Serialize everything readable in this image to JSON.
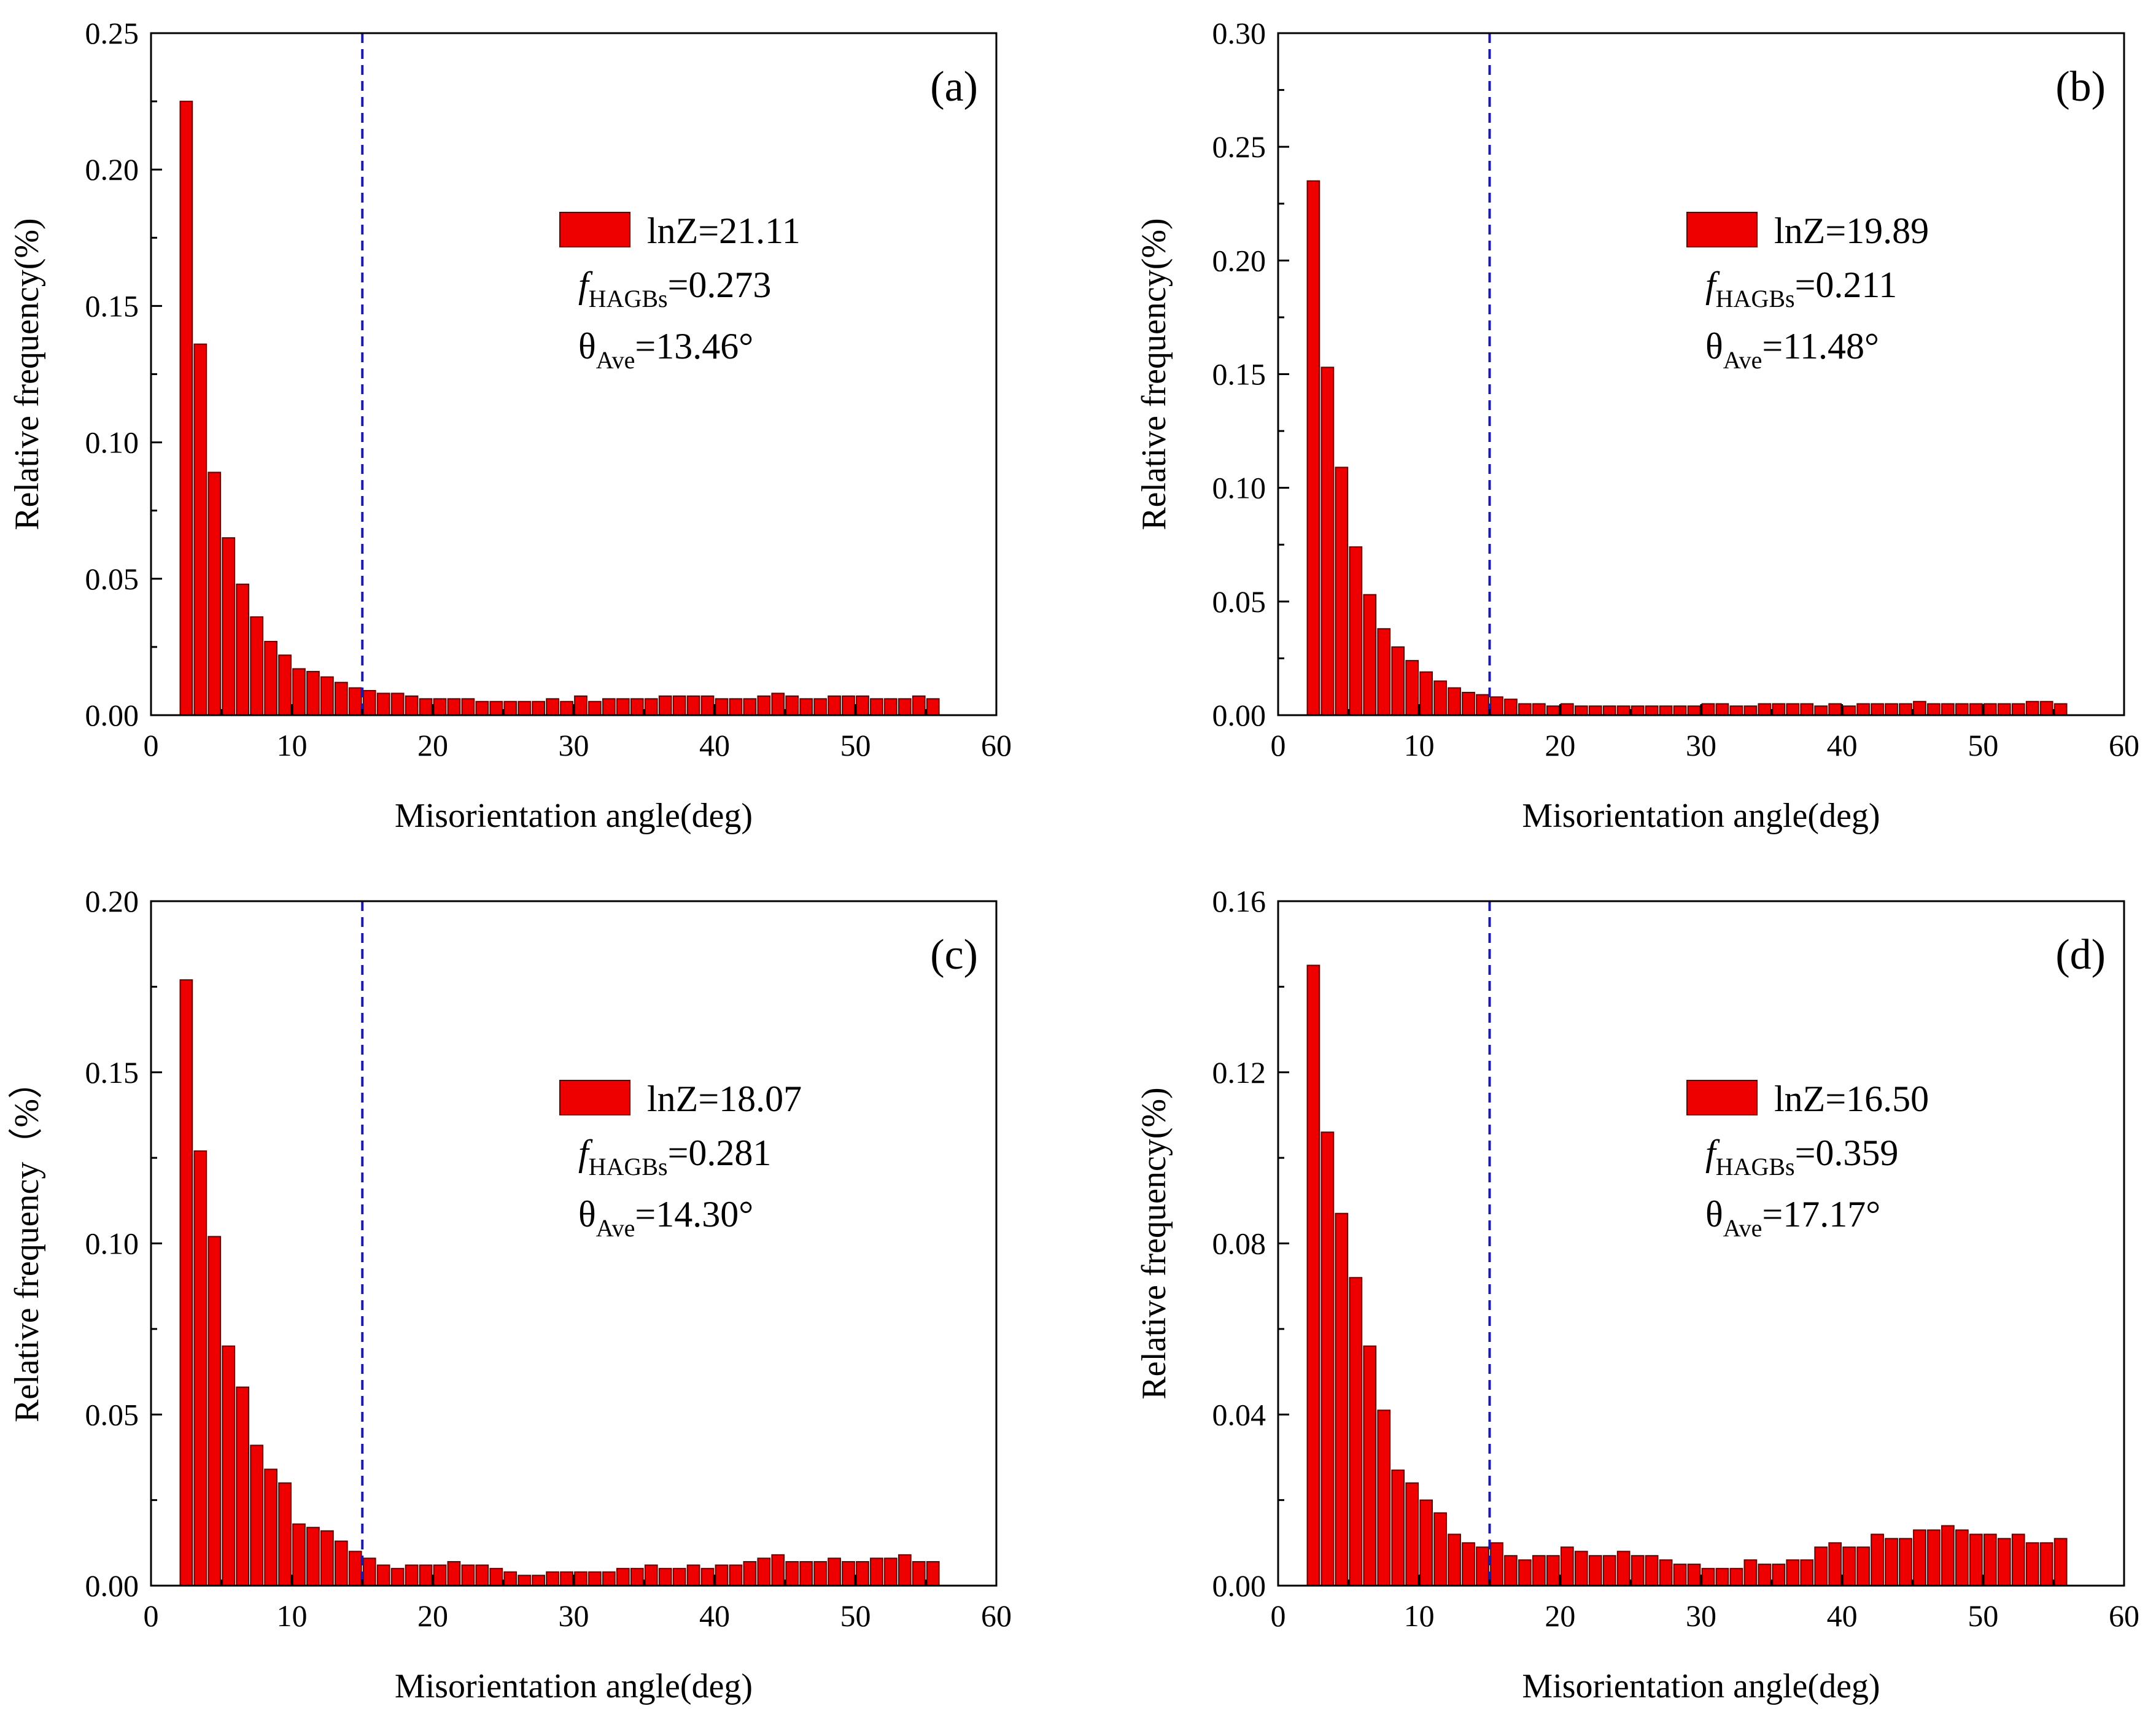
{
  "figure": {
    "bar_color": "#ee0000",
    "bar_edge_color": "#6b0000",
    "dashed_line_color": "#1a1ab0"
  },
  "chart_data": [
    {
      "type": "bar",
      "panel_label": "(a)",
      "xlabel": "Misorientation angle(deg)",
      "ylabel": "Relative frequency(%)",
      "xlim": [
        0,
        60
      ],
      "ylim": [
        0,
        0.25
      ],
      "xticks": [
        "0",
        "10",
        "20",
        "30",
        "40",
        "50",
        "60"
      ],
      "yticks": [
        "0.00",
        "0.05",
        "0.10",
        "0.15",
        "0.20",
        "0.25"
      ],
      "threshold_angle": 15,
      "legend": {
        "series_label": "lnZ=21.11",
        "f_symbol": "f",
        "f_subscript": "HAGBs",
        "f_value": "=0.273",
        "theta_symbol": "θ",
        "theta_subscript": "Ave",
        "theta_value": "=13.46°"
      },
      "x": [
        2.5,
        3.5,
        4.5,
        5.5,
        6.5,
        7.5,
        8.5,
        9.5,
        10.5,
        11.5,
        12.5,
        13.5,
        14.5,
        15.5,
        16.5,
        17.5,
        18.5,
        19.5,
        20.5,
        21.5,
        22.5,
        23.5,
        24.5,
        25.5,
        26.5,
        27.5,
        28.5,
        29.5,
        30.5,
        31.5,
        32.5,
        33.5,
        34.5,
        35.5,
        36.5,
        37.5,
        38.5,
        39.5,
        40.5,
        41.5,
        42.5,
        43.5,
        44.5,
        45.5,
        46.5,
        47.5,
        48.5,
        49.5,
        50.5,
        51.5,
        52.5,
        53.5,
        54.5,
        55.5
      ],
      "values": [
        0.225,
        0.136,
        0.089,
        0.065,
        0.048,
        0.036,
        0.027,
        0.022,
        0.017,
        0.016,
        0.014,
        0.012,
        0.01,
        0.009,
        0.008,
        0.008,
        0.007,
        0.006,
        0.006,
        0.006,
        0.006,
        0.005,
        0.005,
        0.005,
        0.005,
        0.005,
        0.006,
        0.005,
        0.007,
        0.005,
        0.006,
        0.006,
        0.006,
        0.006,
        0.007,
        0.007,
        0.007,
        0.007,
        0.006,
        0.006,
        0.006,
        0.007,
        0.008,
        0.007,
        0.006,
        0.006,
        0.007,
        0.007,
        0.007,
        0.006,
        0.006,
        0.006,
        0.007,
        0.006
      ]
    },
    {
      "type": "bar",
      "panel_label": "(b)",
      "xlabel": "Misorientation angle(deg)",
      "ylabel": "Relative frequency(%)",
      "xlim": [
        0,
        60
      ],
      "ylim": [
        0,
        0.3
      ],
      "xticks": [
        "0",
        "10",
        "20",
        "30",
        "40",
        "50",
        "60"
      ],
      "yticks": [
        "0.00",
        "0.05",
        "0.10",
        "0.15",
        "0.20",
        "0.25",
        "0.30"
      ],
      "threshold_angle": 15,
      "legend": {
        "series_label": "lnZ=19.89",
        "f_symbol": "f",
        "f_subscript": "HAGBs",
        "f_value": "=0.211",
        "theta_symbol": "θ",
        "theta_subscript": "Ave",
        "theta_value": "=11.48°"
      },
      "x": [
        2.5,
        3.5,
        4.5,
        5.5,
        6.5,
        7.5,
        8.5,
        9.5,
        10.5,
        11.5,
        12.5,
        13.5,
        14.5,
        15.5,
        16.5,
        17.5,
        18.5,
        19.5,
        20.5,
        21.5,
        22.5,
        23.5,
        24.5,
        25.5,
        26.5,
        27.5,
        28.5,
        29.5,
        30.5,
        31.5,
        32.5,
        33.5,
        34.5,
        35.5,
        36.5,
        37.5,
        38.5,
        39.5,
        40.5,
        41.5,
        42.5,
        43.5,
        44.5,
        45.5,
        46.5,
        47.5,
        48.5,
        49.5,
        50.5,
        51.5,
        52.5,
        53.5,
        54.5,
        55.5
      ],
      "values": [
        0.235,
        0.153,
        0.109,
        0.074,
        0.053,
        0.038,
        0.03,
        0.024,
        0.019,
        0.015,
        0.012,
        0.01,
        0.009,
        0.008,
        0.007,
        0.005,
        0.005,
        0.004,
        0.005,
        0.004,
        0.004,
        0.004,
        0.004,
        0.004,
        0.004,
        0.004,
        0.004,
        0.004,
        0.005,
        0.005,
        0.004,
        0.004,
        0.005,
        0.005,
        0.005,
        0.005,
        0.004,
        0.005,
        0.004,
        0.005,
        0.005,
        0.005,
        0.005,
        0.006,
        0.005,
        0.005,
        0.005,
        0.005,
        0.005,
        0.005,
        0.005,
        0.006,
        0.006,
        0.005
      ]
    },
    {
      "type": "bar",
      "panel_label": "(c)",
      "xlabel": "Misorientation angle(deg)",
      "ylabel": "Relative frequency（%）",
      "xlim": [
        0,
        60
      ],
      "ylim": [
        0,
        0.2
      ],
      "xticks": [
        "0",
        "10",
        "20",
        "30",
        "40",
        "50",
        "60"
      ],
      "yticks": [
        "0.00",
        "0.05",
        "0.10",
        "0.15",
        "0.20"
      ],
      "threshold_angle": 15,
      "legend": {
        "series_label": "lnZ=18.07",
        "f_symbol": "f",
        "f_subscript": "HAGBs",
        "f_value": "=0.281",
        "theta_symbol": "θ",
        "theta_subscript": "Ave",
        "theta_value": "=14.30°"
      },
      "x": [
        2.5,
        3.5,
        4.5,
        5.5,
        6.5,
        7.5,
        8.5,
        9.5,
        10.5,
        11.5,
        12.5,
        13.5,
        14.5,
        15.5,
        16.5,
        17.5,
        18.5,
        19.5,
        20.5,
        21.5,
        22.5,
        23.5,
        24.5,
        25.5,
        26.5,
        27.5,
        28.5,
        29.5,
        30.5,
        31.5,
        32.5,
        33.5,
        34.5,
        35.5,
        36.5,
        37.5,
        38.5,
        39.5,
        40.5,
        41.5,
        42.5,
        43.5,
        44.5,
        45.5,
        46.5,
        47.5,
        48.5,
        49.5,
        50.5,
        51.5,
        52.5,
        53.5,
        54.5,
        55.5
      ],
      "values": [
        0.177,
        0.127,
        0.102,
        0.07,
        0.058,
        0.041,
        0.034,
        0.03,
        0.018,
        0.017,
        0.016,
        0.013,
        0.01,
        0.008,
        0.006,
        0.005,
        0.006,
        0.006,
        0.006,
        0.007,
        0.006,
        0.006,
        0.005,
        0.004,
        0.003,
        0.003,
        0.004,
        0.004,
        0.004,
        0.004,
        0.004,
        0.005,
        0.005,
        0.006,
        0.005,
        0.005,
        0.006,
        0.005,
        0.006,
        0.006,
        0.007,
        0.008,
        0.009,
        0.007,
        0.007,
        0.007,
        0.008,
        0.007,
        0.007,
        0.008,
        0.008,
        0.009,
        0.007,
        0.007
      ]
    },
    {
      "type": "bar",
      "panel_label": "(d)",
      "xlabel": "Misorientation angle(deg)",
      "ylabel": "Relative frequency(%)",
      "xlim": [
        0,
        60
      ],
      "ylim": [
        0,
        0.16
      ],
      "xticks": [
        "0",
        "10",
        "20",
        "30",
        "40",
        "50",
        "60"
      ],
      "yticks": [
        "0.00",
        "0.04",
        "0.08",
        "0.12",
        "0.16"
      ],
      "threshold_angle": 15,
      "legend": {
        "series_label": "lnZ=16.50",
        "f_symbol": "f",
        "f_subscript": "HAGBs",
        "f_value": "=0.359",
        "theta_symbol": "θ",
        "theta_subscript": "Ave",
        "theta_value": "=17.17°"
      },
      "x": [
        2.5,
        3.5,
        4.5,
        5.5,
        6.5,
        7.5,
        8.5,
        9.5,
        10.5,
        11.5,
        12.5,
        13.5,
        14.5,
        15.5,
        16.5,
        17.5,
        18.5,
        19.5,
        20.5,
        21.5,
        22.5,
        23.5,
        24.5,
        25.5,
        26.5,
        27.5,
        28.5,
        29.5,
        30.5,
        31.5,
        32.5,
        33.5,
        34.5,
        35.5,
        36.5,
        37.5,
        38.5,
        39.5,
        40.5,
        41.5,
        42.5,
        43.5,
        44.5,
        45.5,
        46.5,
        47.5,
        48.5,
        49.5,
        50.5,
        51.5,
        52.5,
        53.5,
        54.5,
        55.5
      ],
      "values": [
        0.145,
        0.106,
        0.087,
        0.072,
        0.056,
        0.041,
        0.027,
        0.024,
        0.02,
        0.017,
        0.012,
        0.01,
        0.009,
        0.01,
        0.007,
        0.006,
        0.007,
        0.007,
        0.009,
        0.008,
        0.007,
        0.007,
        0.008,
        0.007,
        0.007,
        0.006,
        0.005,
        0.005,
        0.004,
        0.004,
        0.004,
        0.006,
        0.005,
        0.005,
        0.006,
        0.006,
        0.009,
        0.01,
        0.009,
        0.009,
        0.012,
        0.011,
        0.011,
        0.013,
        0.013,
        0.014,
        0.013,
        0.012,
        0.012,
        0.011,
        0.012,
        0.01,
        0.01,
        0.011
      ]
    }
  ]
}
